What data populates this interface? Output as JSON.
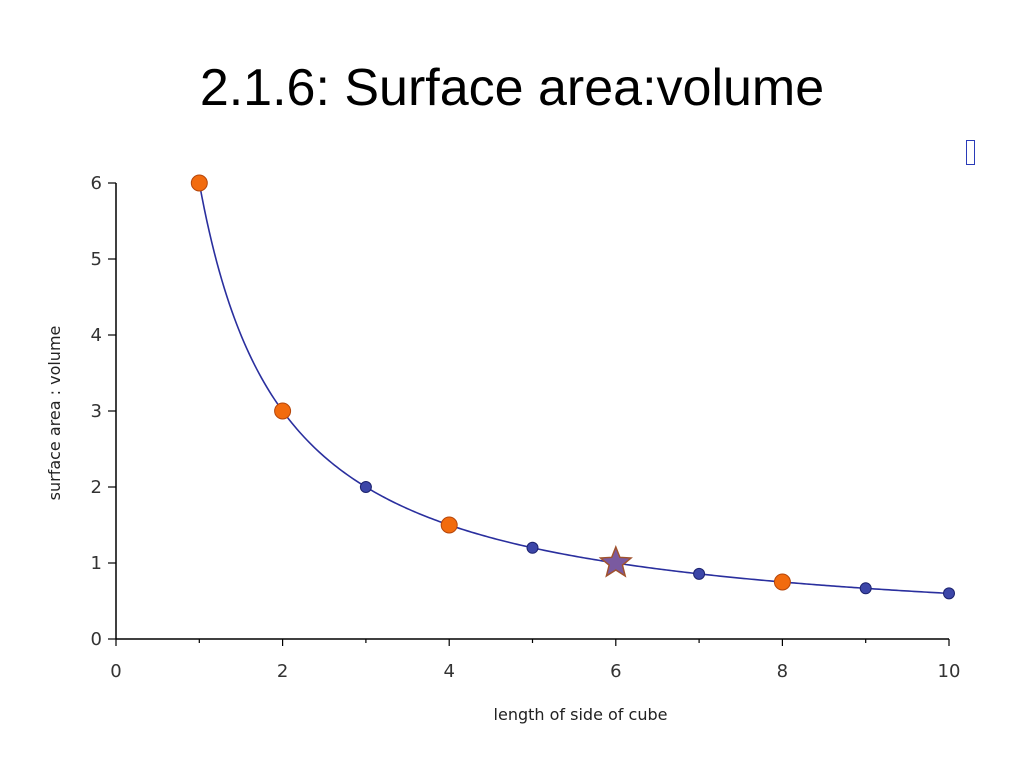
{
  "slide": {
    "title": "2.1.6: Surface area:volume"
  },
  "chart_data": {
    "type": "line",
    "xlabel": "length of side of cube",
    "ylabel": "surface area : volume",
    "xlim": [
      0,
      10
    ],
    "ylim": [
      0,
      6
    ],
    "x_ticks": [
      0,
      2,
      4,
      6,
      8,
      10
    ],
    "y_ticks": [
      0,
      1,
      2,
      3,
      4,
      5,
      6
    ],
    "grid": false,
    "series": [
      {
        "x": [
          1,
          2,
          3,
          4,
          5,
          6,
          7,
          8,
          9,
          10
        ],
        "y": [
          6,
          3,
          2,
          1.5,
          1.2,
          1,
          0.857,
          0.75,
          0.667,
          0.6
        ],
        "color": "#2a2f9e"
      }
    ],
    "highlighted_points": {
      "orange_circles_x": [
        1,
        2,
        4,
        8
      ],
      "star_x": 6,
      "orange_color": "#f26b0e",
      "blue_color": "#3c46a8",
      "star_color": "#7a5aa0"
    }
  }
}
